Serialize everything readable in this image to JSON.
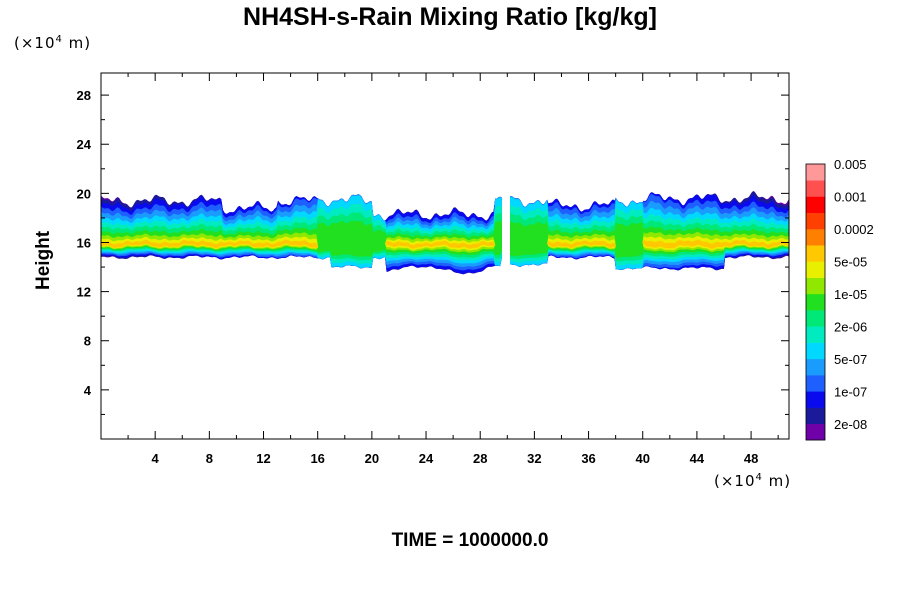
{
  "chart_data": {
    "type": "heatmap",
    "title": "NH4SH-s-Rain Mixing Ratio [kg/kg]",
    "ylabel": "Height",
    "y_unit_prefix": "(×10",
    "y_unit_exp": "4",
    "y_unit_suffix": " m)",
    "x_unit_prefix": "(×10",
    "x_unit_exp": "4",
    "x_unit_suffix": " m)",
    "xlim": [
      0,
      50.8
    ],
    "ylim": [
      0,
      29.8
    ],
    "x_ticks": [
      4,
      8,
      12,
      16,
      20,
      24,
      28,
      32,
      36,
      40,
      44,
      48
    ],
    "x_tick_labels": [
      "4",
      "8",
      "12",
      "16",
      "20",
      "24",
      "28",
      "32",
      "36",
      "40",
      "44",
      "48"
    ],
    "y_ticks": [
      4,
      8,
      12,
      16,
      20,
      24,
      28
    ],
    "y_tick_labels": [
      "4",
      "8",
      "12",
      "16",
      "20",
      "24",
      "28"
    ],
    "colorbar": {
      "colors": [
        "#7000a8",
        "#1a1a9a",
        "#0a0aee",
        "#1e60ff",
        "#1a9cff",
        "#00d8ff",
        "#00ecc0",
        "#00e878",
        "#20e020",
        "#90e800",
        "#e8f000",
        "#ffc800",
        "#ff8000",
        "#ff4000",
        "#ff0000",
        "#ff5050",
        "#ff9898"
      ],
      "labels": [
        "2e-08",
        "1e-07",
        "5e-07",
        "2e-06",
        "1e-05",
        "5e-05",
        "0.0002",
        "0.001",
        "0.005"
      ]
    },
    "field_description": {
      "layer_base_km_x10": 14.8,
      "layer_top_km_x10": 20.0,
      "gap_x": [
        29.6,
        30.2
      ],
      "core_height": 15.8
    }
  },
  "footer": {
    "time_text": "TIME = 1000000.0"
  }
}
